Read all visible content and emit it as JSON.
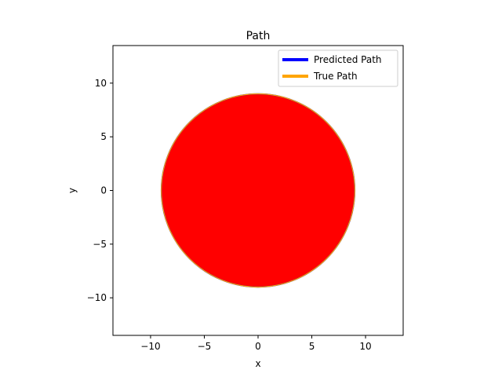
{
  "chart_data": {
    "type": "line",
    "title": "Path",
    "xlabel": "x",
    "ylabel": "y",
    "xlim": [
      -13.5,
      13.5
    ],
    "ylim": [
      -13.5,
      13.5
    ],
    "xticks": [
      -10,
      -5,
      0,
      5,
      10
    ],
    "yticks": [
      -10,
      -5,
      0,
      5,
      10
    ],
    "xtick_labels": [
      "−10",
      "−5",
      "0",
      "5",
      "10"
    ],
    "ytick_labels": [
      "−10",
      "−5",
      "0",
      "5",
      "10"
    ],
    "grid": false,
    "legend_position": "top-right",
    "series": [
      {
        "name": "Predicted Path",
        "color": "#0000ff",
        "shape": "circle",
        "center": [
          0,
          0
        ],
        "radius": 9
      },
      {
        "name": "True Path",
        "color": "#ffa500",
        "shape": "circle",
        "center": [
          0,
          0
        ],
        "radius": 9
      }
    ],
    "fill": {
      "color": "#ff0000",
      "shape": "circle",
      "center": [
        0,
        0
      ],
      "radius": 9
    }
  }
}
